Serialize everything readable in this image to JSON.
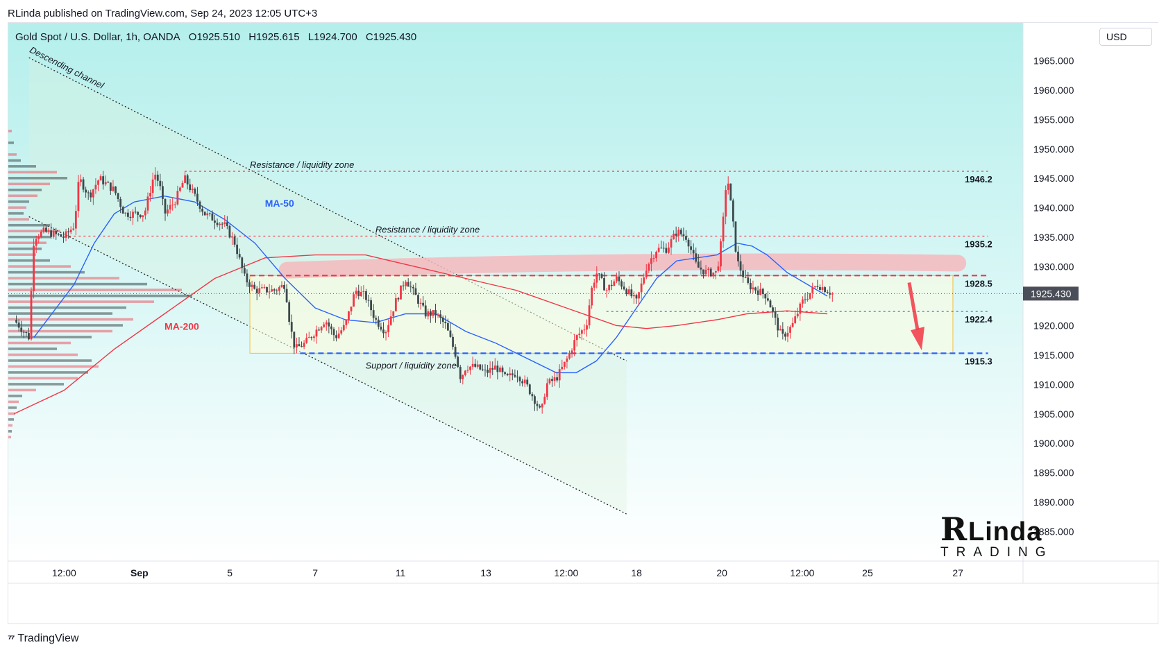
{
  "header": {
    "publisher_line": "RLinda published on TradingView.com, Sep 24, 2023 12:05 UTC+3",
    "symbol": "Gold Spot / U.S. Dollar, 1h, OANDA",
    "open": "O1925.510",
    "high": "H1925.615",
    "low": "L1924.700",
    "close": "C1925.430",
    "currency": "USD"
  },
  "footer": {
    "brand_logo": "⁷⁷",
    "brand_name": "TradingView"
  },
  "watermark": {
    "big": "R",
    "linda": "Linda",
    "trading": "TRADING"
  },
  "chart_data": {
    "type": "candlestick",
    "title": "Gold Spot / U.S. Dollar, 1h, OANDA",
    "y_axis": {
      "ylim": [
        1880,
        1970
      ],
      "ticks": [
        "1965.000",
        "1960.000",
        "1955.000",
        "1950.000",
        "1945.000",
        "1940.000",
        "1935.000",
        "1930.000",
        "1925.000",
        "1920.000",
        "1915.000",
        "1910.000",
        "1905.000",
        "1900.000",
        "1895.000",
        "1890.000",
        "1885.000"
      ],
      "tick_values": [
        1965,
        1960,
        1955,
        1950,
        1945,
        1940,
        1935,
        1930,
        1925,
        1920,
        1915,
        1910,
        1905,
        1900,
        1895,
        1890,
        1885
      ],
      "current_price": "1925.430",
      "current_value": 1925.43
    },
    "x_axis": {
      "ticks": [
        {
          "label": "12:00",
          "t": 0.05,
          "bold": false
        },
        {
          "label": "Sep",
          "t": 0.125,
          "bold": true
        },
        {
          "label": "5",
          "t": 0.215,
          "bold": false
        },
        {
          "label": "7",
          "t": 0.3,
          "bold": false
        },
        {
          "label": "11",
          "t": 0.385,
          "bold": false
        },
        {
          "label": "13",
          "t": 0.47,
          "bold": false
        },
        {
          "label": "12:00",
          "t": 0.55,
          "bold": false
        },
        {
          "label": "18",
          "t": 0.62,
          "bold": false
        },
        {
          "label": "20",
          "t": 0.705,
          "bold": false
        },
        {
          "label": "12:00",
          "t": 0.785,
          "bold": false
        },
        {
          "label": "25",
          "t": 0.85,
          "bold": false
        },
        {
          "label": "27",
          "t": 0.94,
          "bold": false
        }
      ]
    },
    "price_path": [
      [
        0.0,
        1921
      ],
      [
        0.015,
        1918
      ],
      [
        0.02,
        1935
      ],
      [
        0.03,
        1936
      ],
      [
        0.05,
        1935
      ],
      [
        0.06,
        1937
      ],
      [
        0.065,
        1945
      ],
      [
        0.075,
        1942
      ],
      [
        0.085,
        1945
      ],
      [
        0.1,
        1943
      ],
      [
        0.11,
        1939
      ],
      [
        0.13,
        1939
      ],
      [
        0.14,
        1946
      ],
      [
        0.145,
        1944
      ],
      [
        0.15,
        1939
      ],
      [
        0.16,
        1941
      ],
      [
        0.17,
        1945
      ],
      [
        0.18,
        1942
      ],
      [
        0.19,
        1939
      ],
      [
        0.2,
        1938
      ],
      [
        0.21,
        1937
      ],
      [
        0.22,
        1934
      ],
      [
        0.23,
        1928
      ],
      [
        0.24,
        1926
      ],
      [
        0.26,
        1926
      ],
      [
        0.27,
        1927
      ],
      [
        0.275,
        1920
      ],
      [
        0.28,
        1916
      ],
      [
        0.29,
        1917
      ],
      [
        0.3,
        1919
      ],
      [
        0.31,
        1921
      ],
      [
        0.32,
        1918
      ],
      [
        0.33,
        1920
      ],
      [
        0.34,
        1926
      ],
      [
        0.35,
        1925
      ],
      [
        0.36,
        1921
      ],
      [
        0.37,
        1919
      ],
      [
        0.38,
        1924
      ],
      [
        0.39,
        1928
      ],
      [
        0.4,
        1925
      ],
      [
        0.41,
        1922
      ],
      [
        0.42,
        1922
      ],
      [
        0.43,
        1920
      ],
      [
        0.44,
        1915
      ],
      [
        0.445,
        1911
      ],
      [
        0.45,
        1913
      ],
      [
        0.46,
        1913
      ],
      [
        0.47,
        1912
      ],
      [
        0.48,
        1913
      ],
      [
        0.49,
        1911
      ],
      [
        0.5,
        1912
      ],
      [
        0.51,
        1910
      ],
      [
        0.52,
        1907
      ],
      [
        0.525,
        1905
      ],
      [
        0.53,
        1910
      ],
      [
        0.54,
        1911
      ],
      [
        0.55,
        1914
      ],
      [
        0.56,
        1918
      ],
      [
        0.57,
        1920
      ],
      [
        0.575,
        1926
      ],
      [
        0.58,
        1929
      ],
      [
        0.59,
        1926
      ],
      [
        0.6,
        1928
      ],
      [
        0.61,
        1926
      ],
      [
        0.62,
        1924
      ],
      [
        0.63,
        1930
      ],
      [
        0.64,
        1933
      ],
      [
        0.65,
        1933
      ],
      [
        0.66,
        1936
      ],
      [
        0.67,
        1935
      ],
      [
        0.68,
        1930
      ],
      [
        0.69,
        1929
      ],
      [
        0.7,
        1929
      ],
      [
        0.705,
        1935
      ],
      [
        0.71,
        1946
      ],
      [
        0.715,
        1939
      ],
      [
        0.72,
        1931
      ],
      [
        0.73,
        1927
      ],
      [
        0.74,
        1926
      ],
      [
        0.75,
        1925
      ],
      [
        0.76,
        1920
      ],
      [
        0.765,
        1918
      ],
      [
        0.775,
        1920
      ],
      [
        0.785,
        1924
      ],
      [
        0.795,
        1926
      ],
      [
        0.8,
        1927
      ],
      [
        0.81,
        1926
      ],
      [
        0.815,
        1925.43
      ]
    ],
    "ma50_path": [
      [
        0.02,
        1918
      ],
      [
        0.06,
        1927
      ],
      [
        0.08,
        1934
      ],
      [
        0.1,
        1939
      ],
      [
        0.12,
        1941
      ],
      [
        0.15,
        1942
      ],
      [
        0.18,
        1941
      ],
      [
        0.21,
        1938
      ],
      [
        0.24,
        1934
      ],
      [
        0.27,
        1928
      ],
      [
        0.3,
        1923
      ],
      [
        0.33,
        1921
      ],
      [
        0.36,
        1920.5
      ],
      [
        0.39,
        1922
      ],
      [
        0.42,
        1922
      ],
      [
        0.45,
        1919
      ],
      [
        0.48,
        1917
      ],
      [
        0.51,
        1914.5
      ],
      [
        0.54,
        1912
      ],
      [
        0.56,
        1912
      ],
      [
        0.58,
        1914
      ],
      [
        0.6,
        1918
      ],
      [
        0.62,
        1923
      ],
      [
        0.64,
        1928
      ],
      [
        0.66,
        1931
      ],
      [
        0.68,
        1931.5
      ],
      [
        0.7,
        1932
      ],
      [
        0.72,
        1934
      ],
      [
        0.735,
        1933.5
      ],
      [
        0.75,
        1932
      ],
      [
        0.77,
        1929
      ],
      [
        0.79,
        1927
      ],
      [
        0.81,
        1925
      ]
    ],
    "ma200_path": [
      [
        0.0,
        1905
      ],
      [
        0.05,
        1909
      ],
      [
        0.1,
        1916
      ],
      [
        0.15,
        1922
      ],
      [
        0.2,
        1928
      ],
      [
        0.25,
        1931.5
      ],
      [
        0.3,
        1932
      ],
      [
        0.35,
        1932
      ],
      [
        0.4,
        1930
      ],
      [
        0.45,
        1928
      ],
      [
        0.5,
        1926
      ],
      [
        0.55,
        1923
      ],
      [
        0.6,
        1920
      ],
      [
        0.63,
        1919.5
      ],
      [
        0.66,
        1920
      ],
      [
        0.7,
        1921
      ],
      [
        0.73,
        1922
      ],
      [
        0.77,
        1922.5
      ],
      [
        0.81,
        1922
      ]
    ],
    "volume_profile": [
      {
        "price": 1953,
        "len": 5,
        "up": true
      },
      {
        "price": 1951,
        "len": 8,
        "up": false
      },
      {
        "price": 1949,
        "len": 12,
        "up": true
      },
      {
        "price": 1948,
        "len": 18,
        "up": false
      },
      {
        "price": 1947,
        "len": 40,
        "up": false
      },
      {
        "price": 1946,
        "len": 70,
        "up": true
      },
      {
        "price": 1945,
        "len": 85,
        "up": false
      },
      {
        "price": 1944,
        "len": 60,
        "up": true
      },
      {
        "price": 1943,
        "len": 48,
        "up": false
      },
      {
        "price": 1942,
        "len": 42,
        "up": true
      },
      {
        "price": 1941,
        "len": 30,
        "up": false
      },
      {
        "price": 1940,
        "len": 26,
        "up": true
      },
      {
        "price": 1939,
        "len": 22,
        "up": false
      },
      {
        "price": 1938,
        "len": 30,
        "up": true
      },
      {
        "price": 1937,
        "len": 60,
        "up": false
      },
      {
        "price": 1936,
        "len": 75,
        "up": true
      },
      {
        "price": 1935,
        "len": 62,
        "up": false
      },
      {
        "price": 1934,
        "len": 55,
        "up": true
      },
      {
        "price": 1933,
        "len": 48,
        "up": false
      },
      {
        "price": 1932,
        "len": 40,
        "up": true
      },
      {
        "price": 1931,
        "len": 60,
        "up": false
      },
      {
        "price": 1930,
        "len": 90,
        "up": true
      },
      {
        "price": 1929,
        "len": 110,
        "up": false
      },
      {
        "price": 1928,
        "len": 160,
        "up": true
      },
      {
        "price": 1927,
        "len": 200,
        "up": false
      },
      {
        "price": 1926,
        "len": 250,
        "up": true
      },
      {
        "price": 1925,
        "len": 265,
        "up": false
      },
      {
        "price": 1924,
        "len": 210,
        "up": true
      },
      {
        "price": 1923,
        "len": 170,
        "up": false
      },
      {
        "price": 1922,
        "len": 150,
        "up": false
      },
      {
        "price": 1921,
        "len": 180,
        "up": true
      },
      {
        "price": 1920,
        "len": 165,
        "up": false
      },
      {
        "price": 1919,
        "len": 150,
        "up": true
      },
      {
        "price": 1918,
        "len": 120,
        "up": false
      },
      {
        "price": 1917,
        "len": 90,
        "up": true
      },
      {
        "price": 1916,
        "len": 70,
        "up": false
      },
      {
        "price": 1915,
        "len": 100,
        "up": true
      },
      {
        "price": 1914,
        "len": 120,
        "up": false
      },
      {
        "price": 1913,
        "len": 130,
        "up": true
      },
      {
        "price": 1912,
        "len": 115,
        "up": false
      },
      {
        "price": 1911,
        "len": 100,
        "up": true
      },
      {
        "price": 1910,
        "len": 80,
        "up": false
      },
      {
        "price": 1909,
        "len": 40,
        "up": true
      },
      {
        "price": 1908,
        "len": 20,
        "up": false
      },
      {
        "price": 1907,
        "len": 15,
        "up": true
      },
      {
        "price": 1906,
        "len": 12,
        "up": false
      },
      {
        "price": 1905,
        "len": 10,
        "up": true
      },
      {
        "price": 1904,
        "len": 8,
        "up": false
      },
      {
        "price": 1903,
        "len": 6,
        "up": true
      },
      {
        "price": 1902,
        "len": 5,
        "up": false
      },
      {
        "price": 1901,
        "len": 4,
        "up": true
      }
    ],
    "levels": [
      {
        "value": 1946.2,
        "label": "1946.2",
        "color": "#f23645",
        "style": "dotted",
        "from": 0.17
      },
      {
        "value": 1935.2,
        "label": "1935.2",
        "color": "#f23645",
        "style": "dotted",
        "from": 0.05
      },
      {
        "value": 1928.5,
        "label": "1928.5",
        "color": "#f23645",
        "style": "dashed",
        "from": 0.235
      },
      {
        "value": 1922.4,
        "label": "1922.4",
        "color": "#2962ff",
        "style": "dotted",
        "from": 0.59
      },
      {
        "value": 1915.3,
        "label": "1915.3",
        "color": "#2962ff",
        "style": "dashed",
        "from": 0.285
      }
    ],
    "annotations": [
      {
        "text": "Descending channel",
        "t": 0.015,
        "v": 1966.5,
        "angle": 27
      },
      {
        "text": "Resistance / liquidity zone",
        "t": 0.235,
        "v": 1946.8,
        "angle": 0
      },
      {
        "text": "Resistance / liquidity zone",
        "t": 0.36,
        "v": 1935.8,
        "angle": 0
      },
      {
        "text": "Support / liquidity zone",
        "t": 0.35,
        "v": 1912.7,
        "angle": 0
      },
      {
        "text": "MA-50",
        "t": 0.25,
        "v": 1940.2,
        "angle": 0
      },
      {
        "text": "MA-200",
        "t": 0.15,
        "v": 1919.3,
        "angle": 0
      }
    ],
    "colors": {
      "up": "#f23645",
      "down": "#3c4a4d",
      "ma50": "#2962ff",
      "ma200": "#f23645",
      "background_top": "#b4efec",
      "background_bottom": "#ffffff",
      "zone_fill": "#fffde0",
      "zone_border": "#f0c040",
      "pink_band": "#f4b8bd",
      "arrow": "#f23645"
    }
  }
}
